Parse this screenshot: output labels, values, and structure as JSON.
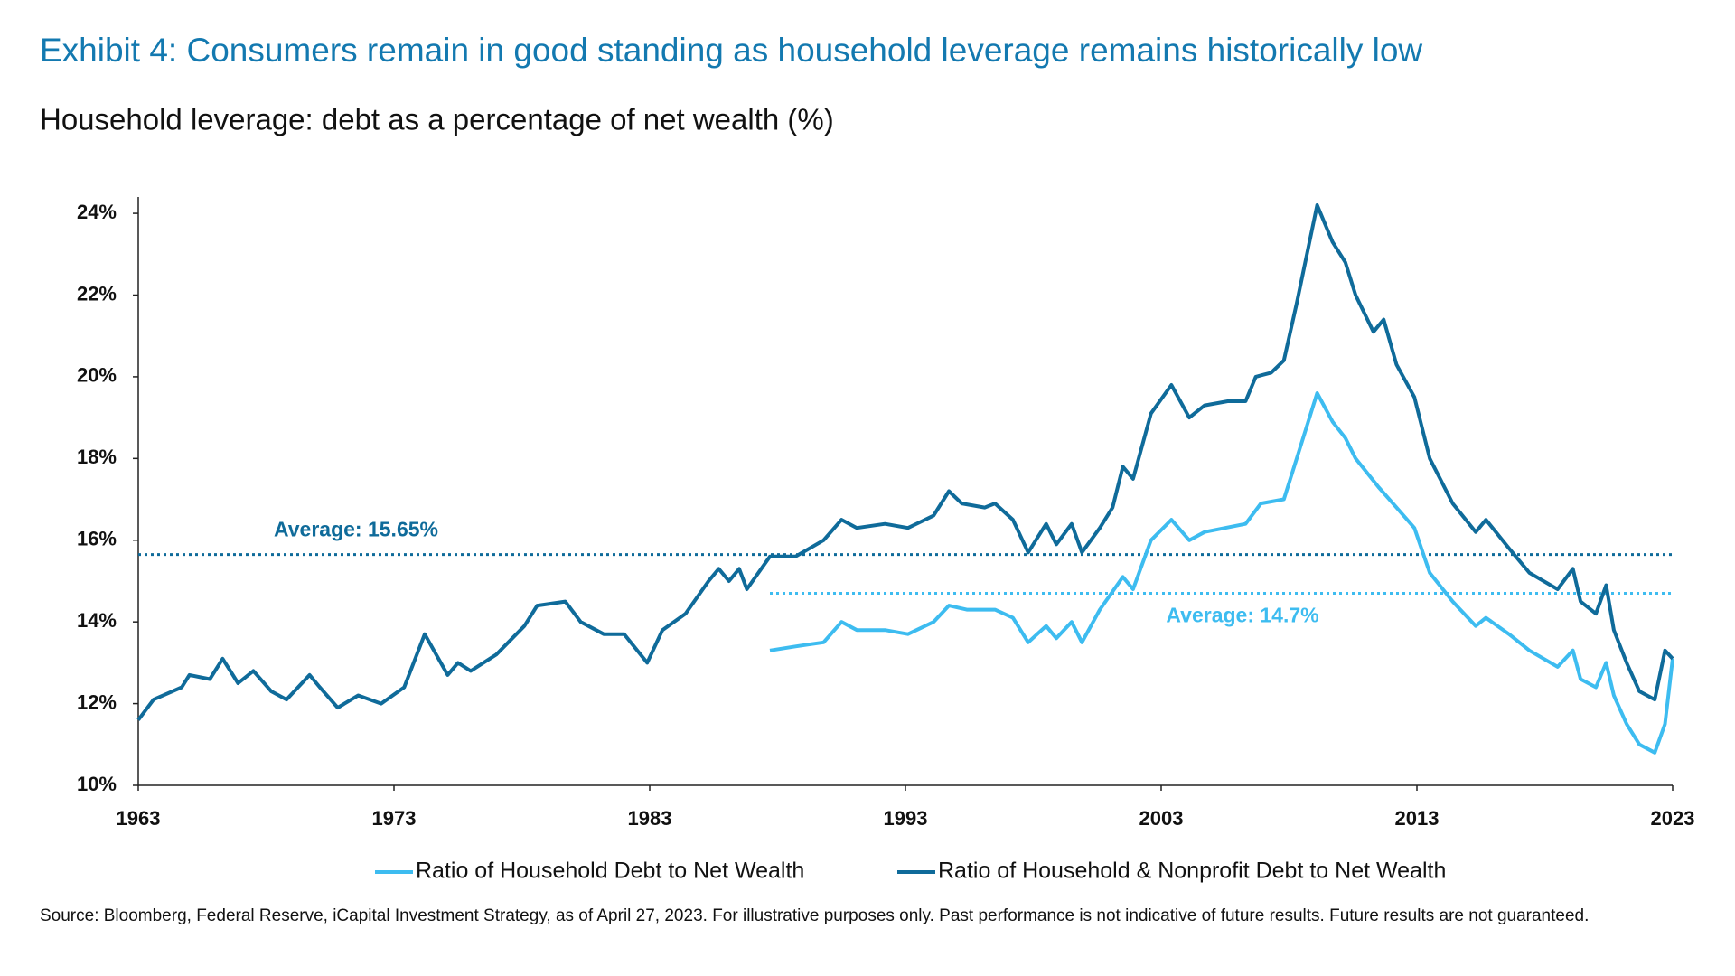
{
  "chart_data": {
    "type": "line",
    "title": "Exhibit 4: Consumers remain in good standing as household leverage remains historically low",
    "subtitle": "Household leverage: debt as a percentage of net wealth (%)",
    "source": "Source: Bloomberg, Federal Reserve, iCapital Investment Strategy, as of April 27, 2023. For illustrative purposes only. Past performance is not indicative of future results. Future results are not guaranteed.",
    "xlim": [
      1963,
      2023
    ],
    "xticks": [
      1963,
      1973,
      1983,
      1993,
      2003,
      2013,
      2023
    ],
    "ylim": [
      10,
      24.4
    ],
    "yticks": [
      {
        "value": 10,
        "label": "10%"
      },
      {
        "value": 12,
        "label": "12%"
      },
      {
        "value": 14,
        "label": "14%"
      },
      {
        "value": 16,
        "label": "16%"
      },
      {
        "value": 18,
        "label": "18%"
      },
      {
        "value": 20,
        "label": "20%"
      },
      {
        "value": 22,
        "label": "22%"
      },
      {
        "value": 24,
        "label": "24%"
      }
    ],
    "grid": false,
    "series": [
      {
        "name": "Ratio of Household Debt to Net Wealth",
        "color": "#3dbcf0",
        "x": [
          1987.7,
          1988.7,
          1989.8,
          1990.5,
          1991.1,
          1992.2,
          1993.1,
          1994.1,
          1994.7,
          1995.4,
          1996.5,
          1997.2,
          1997.8,
          1998.5,
          1998.9,
          1999.5,
          1999.9,
          2000.6,
          2001.5,
          2001.9,
          2002.6,
          2003.4,
          2004.1,
          2004.7,
          2006.3,
          2006.9,
          2007.8,
          2008.3,
          2009.1,
          2009.7,
          2010.2,
          2010.6,
          2011.5,
          2012.2,
          2012.9,
          2013.5,
          2014.4,
          2015.3,
          2015.7,
          2016.6,
          2017.4,
          2018.5,
          2019.1,
          2019.4,
          2020.0,
          2020.4,
          2020.7,
          2021.2,
          2021.7,
          2022.3,
          2022.7,
          2023
        ],
        "values": [
          13.3,
          13.4,
          13.5,
          14.0,
          13.8,
          13.8,
          13.7,
          14.0,
          14.4,
          14.3,
          14.3,
          14.1,
          13.5,
          13.9,
          13.6,
          14.0,
          13.5,
          14.3,
          15.1,
          14.8,
          16.0,
          16.5,
          16.0,
          16.2,
          16.4,
          16.9,
          17.0,
          18.0,
          19.6,
          18.9,
          18.5,
          18.0,
          17.3,
          16.8,
          16.3,
          15.2,
          14.5,
          13.9,
          14.1,
          13.7,
          13.3,
          12.9,
          13.3,
          12.6,
          12.4,
          13.0,
          12.2,
          11.5,
          11.0,
          10.8,
          11.5,
          13.1
        ]
      },
      {
        "name": "Ratio of Household & Nonprofit Debt to Net Wealth",
        "color": "#0f6b9a",
        "x": [
          1963,
          1963.6,
          1964.7,
          1965,
          1965.8,
          1966.3,
          1966.9,
          1967.5,
          1968.2,
          1968.8,
          1969.7,
          1970.1,
          1970.8,
          1971.6,
          1972.5,
          1973.4,
          1974.2,
          1975.1,
          1975.5,
          1976,
          1977,
          1978.1,
          1978.6,
          1979.7,
          1980.3,
          1981.2,
          1982,
          1982.9,
          1983.5,
          1984.4,
          1985.3,
          1985.7,
          1986.1,
          1986.5,
          1986.8,
          1987.7,
          1988.7,
          1989.8,
          1990.5,
          1991.1,
          1992.2,
          1993.1,
          1994.1,
          1994.7,
          1995.2,
          1996.1,
          1996.5,
          1997.2,
          1997.8,
          1998.5,
          1998.9,
          1999.5,
          1999.9,
          2000.6,
          2001.1,
          2001.5,
          2001.9,
          2002.6,
          2003.4,
          2004.1,
          2004.7,
          2005.6,
          2006.3,
          2006.7,
          2007.3,
          2007.8,
          2008.3,
          2009.1,
          2009.7,
          2010.2,
          2010.6,
          2011.3,
          2011.7,
          2012.2,
          2012.9,
          2013.5,
          2014.4,
          2015.3,
          2015.7,
          2016.6,
          2017.4,
          2018.5,
          2019.1,
          2019.4,
          2020.0,
          2020.4,
          2020.7,
          2021.2,
          2021.7,
          2022.3,
          2022.7,
          2023
        ],
        "values": [
          11.6,
          12.1,
          12.4,
          12.7,
          12.6,
          13.1,
          12.5,
          12.8,
          12.3,
          12.1,
          12.7,
          12.4,
          11.9,
          12.2,
          12.0,
          12.4,
          13.7,
          12.7,
          13.0,
          12.8,
          13.2,
          13.9,
          14.4,
          14.5,
          14.0,
          13.7,
          13.7,
          13.0,
          13.8,
          14.2,
          15.0,
          15.3,
          15.0,
          15.3,
          14.8,
          15.6,
          15.6,
          16.0,
          16.5,
          16.3,
          16.4,
          16.3,
          16.6,
          17.2,
          16.9,
          16.8,
          16.9,
          16.5,
          15.7,
          16.4,
          15.9,
          16.4,
          15.7,
          16.3,
          16.8,
          17.8,
          17.5,
          19.1,
          19.8,
          19.0,
          19.3,
          19.4,
          19.4,
          20.0,
          20.1,
          20.4,
          21.8,
          24.2,
          23.3,
          22.8,
          22.0,
          21.1,
          21.4,
          20.3,
          19.5,
          18.0,
          16.9,
          16.2,
          16.5,
          15.8,
          15.2,
          14.8,
          15.3,
          14.5,
          14.2,
          14.9,
          13.8,
          13.0,
          12.3,
          12.1,
          13.3,
          13.1
        ]
      }
    ],
    "reference_lines": [
      {
        "value": 15.65,
        "label": "Average: 15.65%",
        "color": "#0f6b9a",
        "from": 1963
      },
      {
        "value": 14.7,
        "label": "Average: 14.7%",
        "color": "#3dbcf0",
        "from": 1987.7
      }
    ]
  }
}
